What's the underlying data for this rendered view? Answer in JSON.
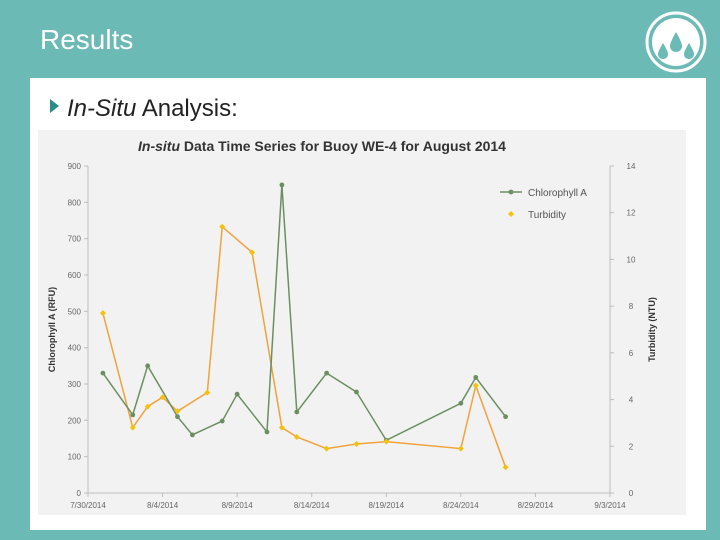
{
  "slide": {
    "title": "Results",
    "bullet_italic": "In-Situ",
    "bullet_rest": " Analysis:",
    "logo_icon": "water-drops-icon"
  },
  "colors": {
    "header_bg": "#6bbab6",
    "bullet_accent": "#2c8c86",
    "chlorophyll": "#6b8f61",
    "turbidity": "#f0a23c",
    "turbidity_marker": "#f2c20c"
  },
  "chart_data": {
    "type": "line",
    "title_italic": "In-situ",
    "title_rest": " Data Time Series for Buoy WE-4 for August 2014",
    "ylabel": "Chlorophyll A (RFU)",
    "y2label": "Turbidity (NTU)",
    "ylim": [
      0,
      900
    ],
    "y2lim": [
      0,
      14
    ],
    "xlim": [
      "2014-07-30",
      "2014-09-03"
    ],
    "x_ticks": [
      "7/30/2014",
      "8/4/2014",
      "8/9/2014",
      "8/14/2014",
      "8/19/2014",
      "8/24/2014",
      "8/29/2014",
      "9/3/2014"
    ],
    "y_ticks": [
      "0",
      "100",
      "200",
      "300",
      "400",
      "500",
      "600",
      "700",
      "800",
      "900"
    ],
    "y2_ticks": [
      "0",
      "2",
      "4",
      "6",
      "8",
      "10",
      "12",
      "14"
    ],
    "legend_position": "top-right",
    "grid": false,
    "series": [
      {
        "name": "Chlorophyll A",
        "axis": "left",
        "x": [
          "2014-07-31",
          "2014-08-02",
          "2014-08-03",
          "2014-08-05",
          "2014-08-06",
          "2014-08-08",
          "2014-08-09",
          "2014-08-11",
          "2014-08-12",
          "2014-08-13",
          "2014-08-15",
          "2014-08-17",
          "2014-08-19",
          "2014-08-24",
          "2014-08-25",
          "2014-08-27"
        ],
        "y": [
          330,
          215,
          350,
          210,
          160,
          198,
          272,
          168,
          848,
          223,
          330,
          278,
          145,
          247,
          318,
          210
        ]
      },
      {
        "name": "Turbidity",
        "axis": "right",
        "x": [
          "2014-07-31",
          "2014-08-02",
          "2014-08-03",
          "2014-08-04",
          "2014-08-05",
          "2014-08-07",
          "2014-08-08",
          "2014-08-10",
          "2014-08-12",
          "2014-08-13",
          "2014-08-15",
          "2014-08-17",
          "2014-08-19",
          "2014-08-24",
          "2014-08-25",
          "2014-08-27"
        ],
        "y": [
          7.7,
          2.8,
          3.7,
          4.1,
          3.5,
          4.3,
          11.4,
          10.3,
          2.8,
          2.4,
          1.9,
          2.1,
          2.2,
          1.9,
          4.6,
          1.1
        ]
      }
    ]
  }
}
